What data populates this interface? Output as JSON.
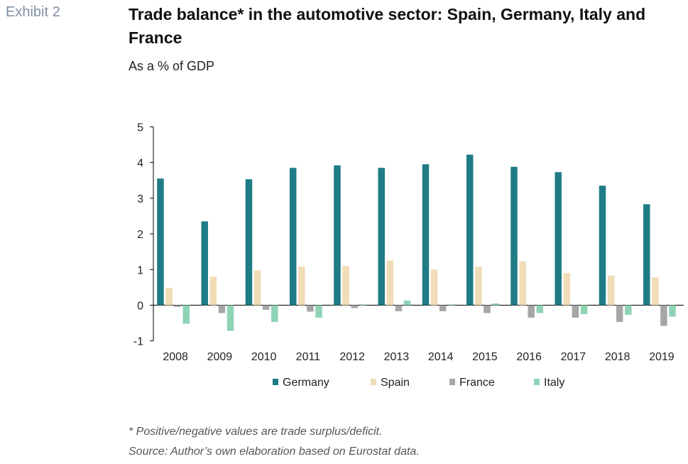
{
  "header": {
    "exhibit_label": "Exhibit 2",
    "title": "Trade balance* in the automotive sector: Spain, Germany, Italy and France",
    "subtitle": "As a % of GDP"
  },
  "footnotes": {
    "note": "* Positive/negative values are trade surplus/deficit.",
    "source": "Source: Author’s own elaboration based on Eurostat data."
  },
  "chart_data": {
    "type": "bar",
    "categories": [
      "2008",
      "2009",
      "2010",
      "2011",
      "2012",
      "2013",
      "2014",
      "2015",
      "2016",
      "2017",
      "2018",
      "2019"
    ],
    "series": [
      {
        "name": "Germany",
        "color": "#1f7b85",
        "values": [
          3.55,
          2.35,
          3.53,
          3.85,
          3.92,
          3.85,
          3.95,
          4.22,
          3.88,
          3.73,
          3.35,
          2.83
        ]
      },
      {
        "name": "Spain",
        "color": "#f0dcb6",
        "values": [
          0.48,
          0.8,
          0.98,
          1.08,
          1.1,
          1.25,
          1.0,
          1.08,
          1.23,
          0.9,
          0.83,
          0.78
        ]
      },
      {
        "name": "France",
        "color": "#a6a6a6",
        "values": [
          -0.05,
          -0.22,
          -0.13,
          -0.18,
          -0.08,
          -0.17,
          -0.17,
          -0.22,
          -0.35,
          -0.35,
          -0.47,
          -0.58
        ]
      },
      {
        "name": "Italy",
        "color": "#8fd3b5",
        "values": [
          -0.52,
          -0.72,
          -0.47,
          -0.35,
          0.02,
          0.13,
          0.02,
          0.05,
          -0.22,
          -0.25,
          -0.27,
          -0.32
        ]
      }
    ],
    "ylim": [
      -1,
      5
    ],
    "yticks": [
      -1,
      0,
      1,
      2,
      3,
      4,
      5
    ],
    "legend_position": "bottom",
    "grid": false
  }
}
